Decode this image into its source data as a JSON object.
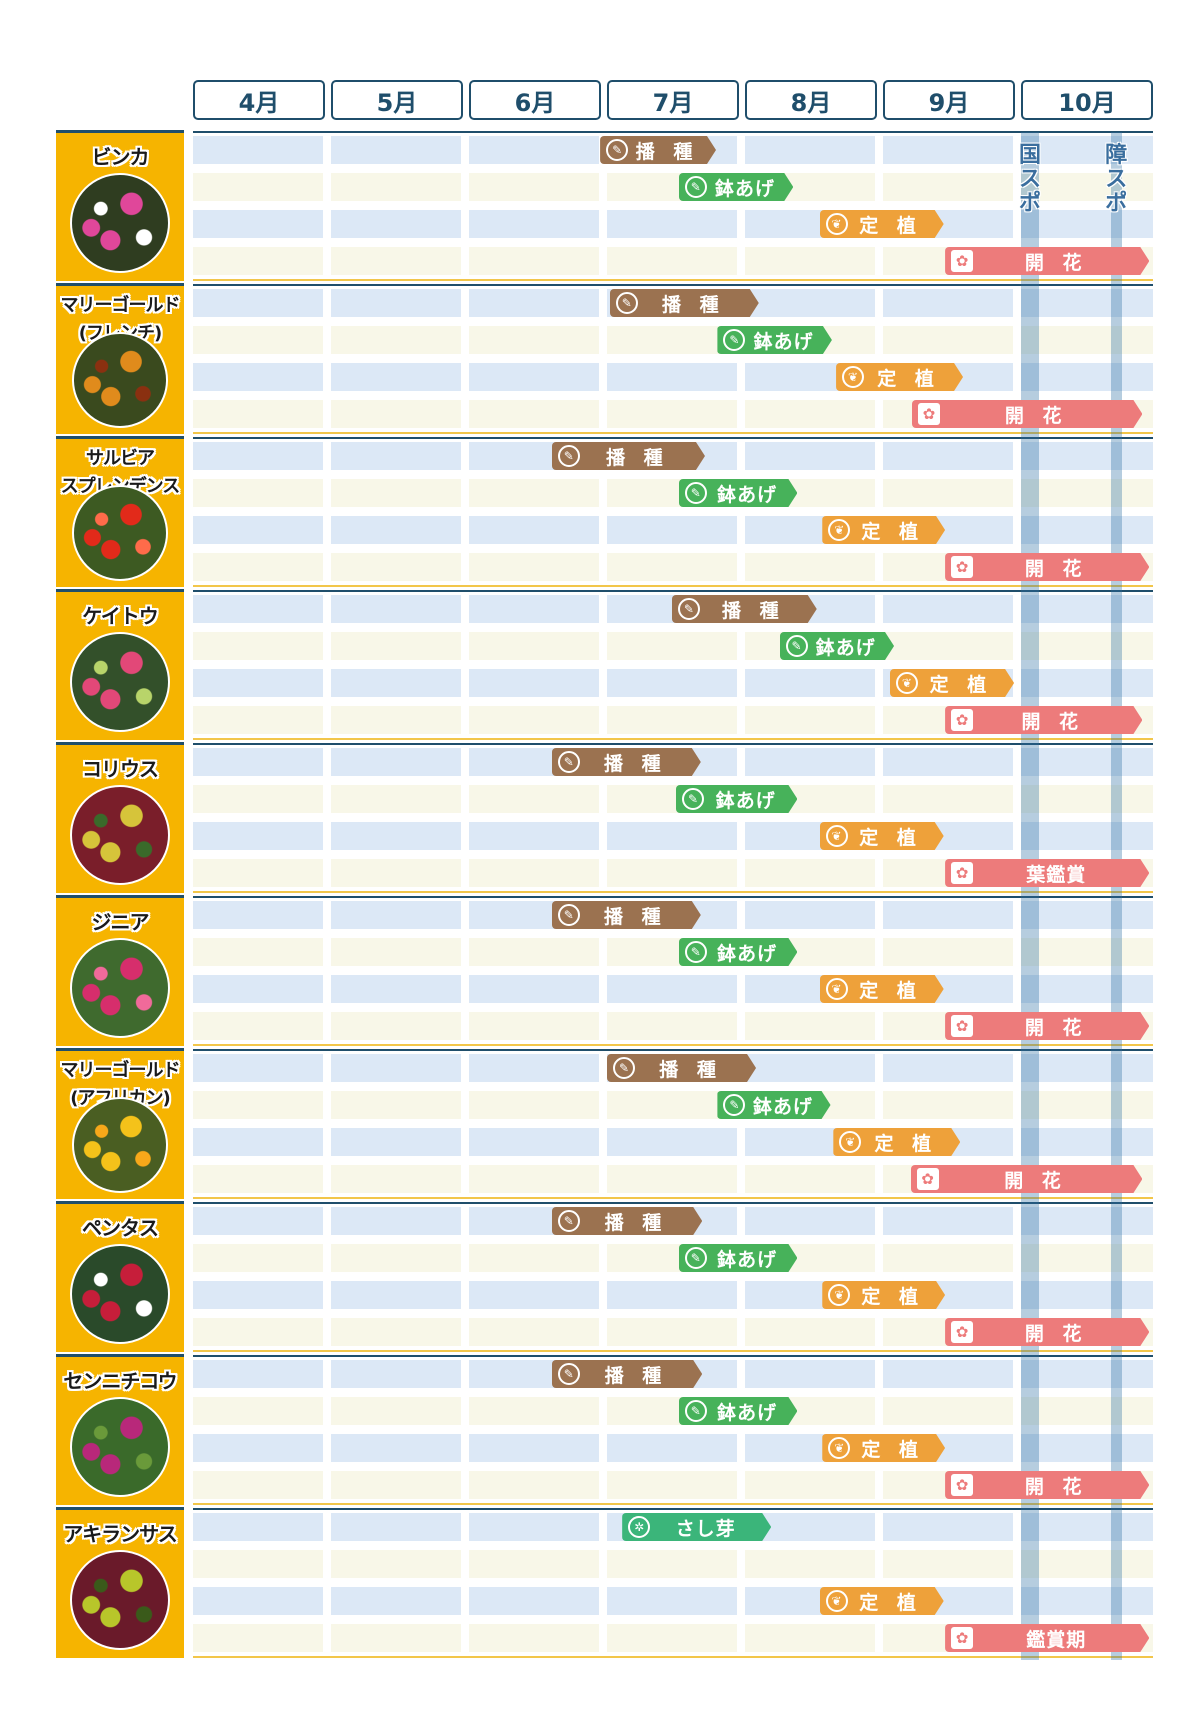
{
  "chart_data": {
    "type": "gantt",
    "months": [
      "4月",
      "5月",
      "6月",
      "7月",
      "8月",
      "9月",
      "10月"
    ],
    "events": [
      {
        "label": "国スポ",
        "start_month": 10.0,
        "end_month": 10.13
      },
      {
        "label": "障スポ",
        "start_month": 10.65,
        "end_month": 10.73
      }
    ],
    "stage_colors": {
      "sowing": "#9b7250",
      "potting": "#47b25a",
      "planting": "#eea13a",
      "blooming": "#ed7b7b",
      "cutting": "#3bb57a"
    },
    "plants": [
      {
        "name": "ビンカ",
        "photo": [
          "#2f3d20",
          "#e0479a",
          "#ffffff"
        ],
        "stages": [
          {
            "kind": "sowing",
            "label": "播 種",
            "start": 6.95,
            "end": 7.79
          },
          {
            "kind": "potting",
            "label": "鉢あげ",
            "start": 7.52,
            "end": 8.35
          },
          {
            "kind": "planting",
            "label": "定 植",
            "start": 8.54,
            "end": 9.44
          },
          {
            "kind": "blooming",
            "label": "開 花",
            "start": 9.45,
            "end": 10.93
          }
        ]
      },
      {
        "name": "マリーゴールド\n(フレンチ)",
        "photo": [
          "#3a4a1e",
          "#e08b1c",
          "#8a3010"
        ],
        "stages": [
          {
            "kind": "sowing",
            "label": "播 種",
            "start": 7.02,
            "end": 8.1
          },
          {
            "kind": "potting",
            "label": "鉢あげ",
            "start": 7.8,
            "end": 8.63
          },
          {
            "kind": "planting",
            "label": "定 植",
            "start": 8.66,
            "end": 9.58
          },
          {
            "kind": "blooming",
            "label": "開 花",
            "start": 9.21,
            "end": 10.88
          }
        ]
      },
      {
        "name": "サルビア\nスプレンデンス",
        "photo": [
          "#3d5a22",
          "#e22a1a",
          "#ff6b4a"
        ],
        "stages": [
          {
            "kind": "sowing",
            "label": "播 種",
            "start": 6.6,
            "end": 7.71
          },
          {
            "kind": "potting",
            "label": "鉢あげ",
            "start": 7.52,
            "end": 8.38
          },
          {
            "kind": "planting",
            "label": "定 植",
            "start": 8.56,
            "end": 9.45
          },
          {
            "kind": "blooming",
            "label": "開 花",
            "start": 9.45,
            "end": 10.93
          }
        ]
      },
      {
        "name": "ケイトウ",
        "photo": [
          "#33502a",
          "#e24878",
          "#b8d46a"
        ],
        "stages": [
          {
            "kind": "sowing",
            "label": "播 種",
            "start": 7.47,
            "end": 8.52
          },
          {
            "kind": "potting",
            "label": "鉢あげ",
            "start": 8.25,
            "end": 9.08
          },
          {
            "kind": "planting",
            "label": "定 植",
            "start": 9.05,
            "end": 9.95
          },
          {
            "kind": "blooming",
            "label": "開 花",
            "start": 9.45,
            "end": 10.88
          }
        ]
      },
      {
        "name": "コリウス",
        "photo": [
          "#7a1e2a",
          "#d6c43a",
          "#3a6a2a"
        ],
        "stages": [
          {
            "kind": "sowing",
            "label": "播 種",
            "start": 6.6,
            "end": 7.68
          },
          {
            "kind": "potting",
            "label": "鉢あげ",
            "start": 7.5,
            "end": 8.38
          },
          {
            "kind": "planting",
            "label": "定 植",
            "start": 8.54,
            "end": 9.44
          },
          {
            "kind": "blooming",
            "label": "葉鑑賞",
            "start": 9.45,
            "end": 10.93
          }
        ]
      },
      {
        "name": "ジニア",
        "photo": [
          "#3f6a2e",
          "#d62e6c",
          "#f06a9a"
        ],
        "stages": [
          {
            "kind": "sowing",
            "label": "播 種",
            "start": 6.6,
            "end": 7.68
          },
          {
            "kind": "potting",
            "label": "鉢あげ",
            "start": 7.52,
            "end": 8.38
          },
          {
            "kind": "planting",
            "label": "定 植",
            "start": 8.54,
            "end": 9.44
          },
          {
            "kind": "blooming",
            "label": "開 花",
            "start": 9.45,
            "end": 10.93
          }
        ]
      },
      {
        "name": "マリーゴールド\n(アフリカン)",
        "photo": [
          "#4a5e22",
          "#f4c21a",
          "#f7a81a"
        ],
        "stages": [
          {
            "kind": "sowing",
            "label": "播 種",
            "start": 7.0,
            "end": 8.08
          },
          {
            "kind": "potting",
            "label": "鉢あげ",
            "start": 7.8,
            "end": 8.62
          },
          {
            "kind": "planting",
            "label": "定 植",
            "start": 8.64,
            "end": 9.56
          },
          {
            "kind": "blooming",
            "label": "開 花",
            "start": 9.2,
            "end": 10.88
          }
        ]
      },
      {
        "name": "ペンタス",
        "photo": [
          "#2a4a2a",
          "#c61e3a",
          "#ffffff"
        ],
        "stages": [
          {
            "kind": "sowing",
            "label": "播 種",
            "start": 6.6,
            "end": 7.69
          },
          {
            "kind": "potting",
            "label": "鉢あげ",
            "start": 7.52,
            "end": 8.38
          },
          {
            "kind": "planting",
            "label": "定 植",
            "start": 8.56,
            "end": 9.45
          },
          {
            "kind": "blooming",
            "label": "開 花",
            "start": 9.45,
            "end": 10.93
          }
        ]
      },
      {
        "name": "センニチコウ",
        "photo": [
          "#3a6a2a",
          "#b8287a",
          "#6a9a3a"
        ],
        "stages": [
          {
            "kind": "sowing",
            "label": "播 種",
            "start": 6.6,
            "end": 7.69
          },
          {
            "kind": "potting",
            "label": "鉢あげ",
            "start": 7.52,
            "end": 8.38
          },
          {
            "kind": "planting",
            "label": "定 植",
            "start": 8.56,
            "end": 9.45
          },
          {
            "kind": "blooming",
            "label": "開 花",
            "start": 9.45,
            "end": 10.93
          }
        ]
      },
      {
        "name": "アキランサス",
        "photo": [
          "#6a1a2a",
          "#b8c62a",
          "#3a5a1a"
        ],
        "stages": [
          {
            "kind": "cutting",
            "label": "さし芽",
            "row": 0,
            "start": 7.11,
            "end": 8.19
          },
          {
            "kind": "planting",
            "label": "定 植",
            "row": 2,
            "start": 8.54,
            "end": 9.44
          },
          {
            "kind": "blooming",
            "label": "鑑賞期",
            "row": 3,
            "start": 9.45,
            "end": 10.93
          }
        ]
      }
    ]
  }
}
